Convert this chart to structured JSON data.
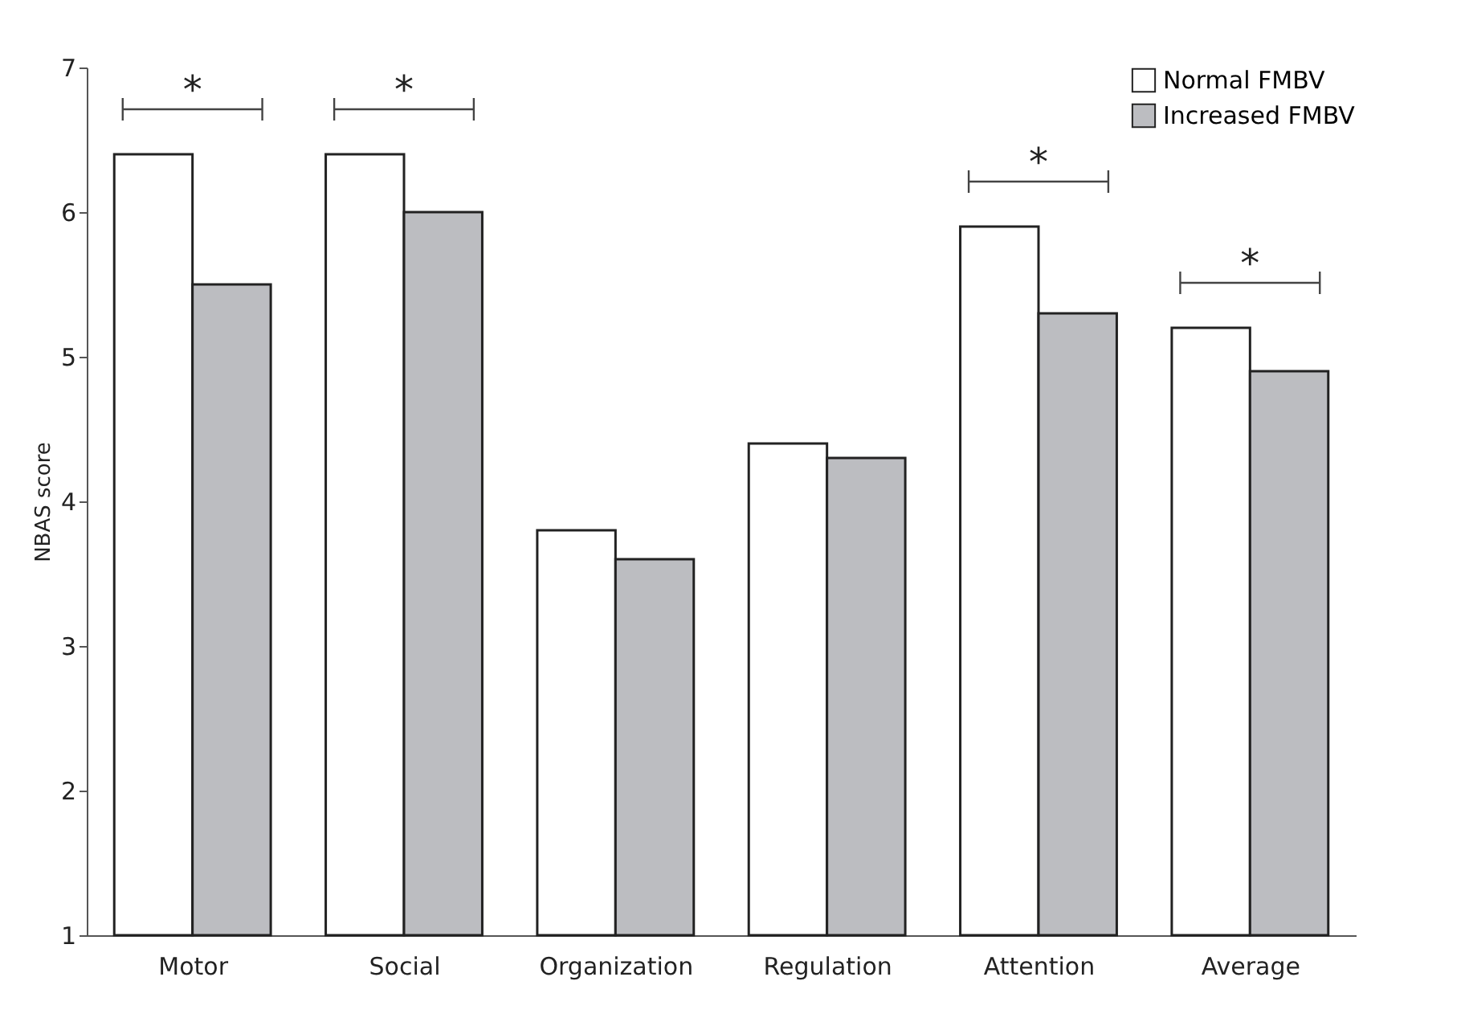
{
  "chart_data": {
    "type": "bar",
    "ylabel": "NBAS score",
    "categories": [
      "Motor",
      "Social",
      "Organization",
      "Regulation",
      "Attention",
      "Average"
    ],
    "series": [
      {
        "name": "Normal FMBV",
        "color": "#ffffff",
        "values": [
          6.4,
          6.4,
          3.8,
          4.4,
          5.9,
          5.2
        ]
      },
      {
        "name": "Increased FMBV",
        "color": "#bcbdc1",
        "values": [
          5.5,
          6.0,
          3.6,
          4.3,
          5.3,
          4.9
        ]
      }
    ],
    "ylim": [
      1,
      7
    ],
    "yticks": [
      1,
      2,
      3,
      4,
      5,
      6,
      7
    ],
    "grid": false,
    "legend": "top right",
    "annotations": [
      "*",
      "*",
      "*",
      "*"
    ]
  }
}
